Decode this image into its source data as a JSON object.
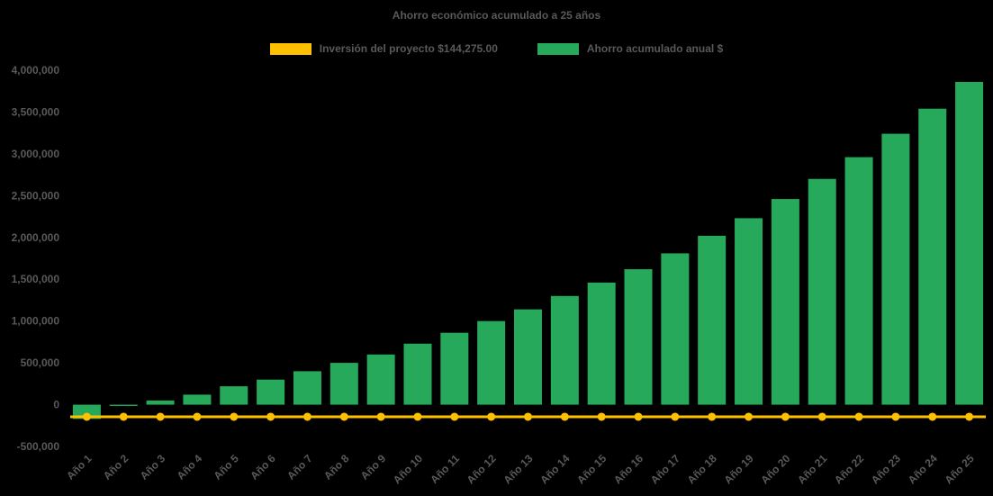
{
  "window": {
    "background": "#000000",
    "text_color": "#595959"
  },
  "chart_data": {
    "type": "bar",
    "title": "Ahorro económico acumulado a 25 años",
    "categories": [
      "Año 1",
      "Año 2",
      "Año 3",
      "Año 4",
      "Año 5",
      "Año 6",
      "Año 7",
      "Año 8",
      "Año 9",
      "Año 10",
      "Año 11",
      "Año 12",
      "Año 13",
      "Año 14",
      "Año 15",
      "Año 16",
      "Año 17",
      "Año 18",
      "Año 19",
      "Año 20",
      "Año 21",
      "Año 22",
      "Año 23",
      "Año 24",
      "Año 25"
    ],
    "series": [
      {
        "name": "Inversión del proyecto $144,275.00",
        "type": "line",
        "color": "#FFC000",
        "marker": "circle",
        "constant_value": -144275
      },
      {
        "name": "Ahorro acumulado anual $",
        "type": "bar",
        "color": "#27A95C",
        "values": [
          -170000,
          -15000,
          50000,
          120000,
          220000,
          300000,
          400000,
          500000,
          600000,
          730000,
          860000,
          1000000,
          1140000,
          1300000,
          1460000,
          1620000,
          1810000,
          2020000,
          2230000,
          2460000,
          2700000,
          2960000,
          3240000,
          3540000,
          3860000
        ]
      }
    ],
    "ylim": [
      -500000,
      4000000
    ],
    "y_ticks": [
      {
        "value": 4000000,
        "label": "4,000,000"
      },
      {
        "value": 3500000,
        "label": "3,500,000"
      },
      {
        "value": 3000000,
        "label": "3,000,000"
      },
      {
        "value": 2500000,
        "label": "2,500,000"
      },
      {
        "value": 2000000,
        "label": "2,000,000"
      },
      {
        "value": 1500000,
        "label": "1,500,000"
      },
      {
        "value": 1000000,
        "label": "1,000,000"
      },
      {
        "value": 500000,
        "label": "500,000"
      },
      {
        "value": 0,
        "label": "0"
      },
      {
        "value": -500000,
        "label": "-500,000"
      }
    ],
    "grid": false,
    "legend_position": "top",
    "x_label_rotation": 45
  }
}
